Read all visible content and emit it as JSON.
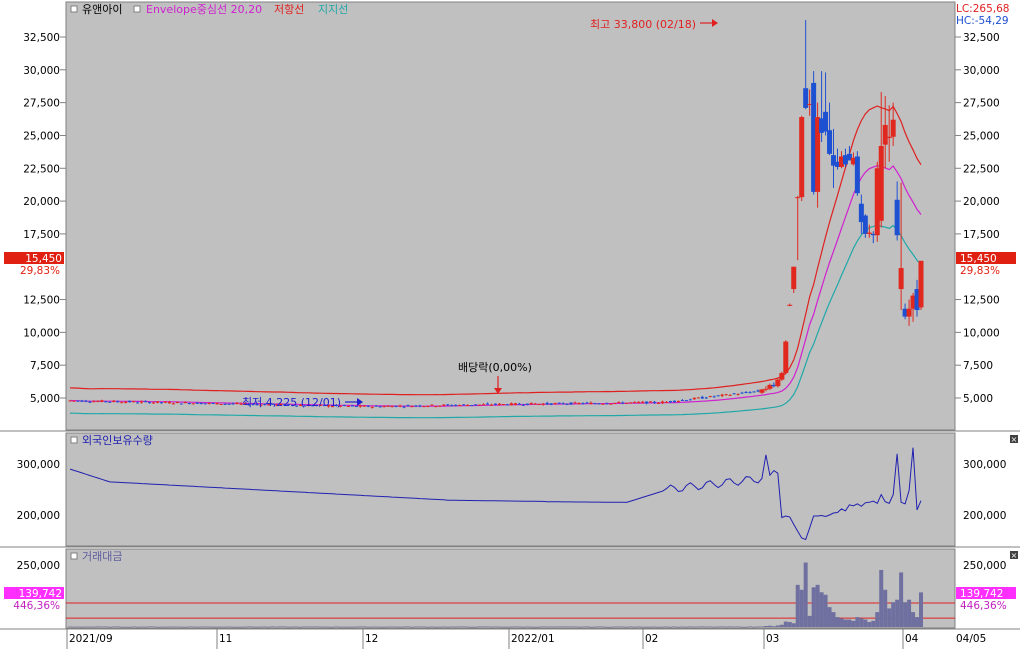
{
  "colors": {
    "panel_bg": "#c0c0c0",
    "axis_bg": "#ffffff",
    "up": "#e0281e",
    "down": "#1e50d2",
    "resistance": "#e02020",
    "center": "#d020d0",
    "support": "#20a8a8",
    "foreign": "#2020b0",
    "amount": "#7070a0",
    "price_tag": "#e02010",
    "amount_tag": "#ff30ff"
  },
  "legend": {
    "stock_name": "유앤아이",
    "envelope": "Envelope중심선 20,20",
    "resistance": "저항선",
    "support": "지지선"
  },
  "corner": {
    "lc": "LC:265,68",
    "hc": "HC:-54,29"
  },
  "price_tag": {
    "value": "15,450",
    "pct": "29,83%"
  },
  "amount_tag": {
    "value": "139,742",
    "pct": "446,36%"
  },
  "foreign_title": "외국인보유수량",
  "amount_title": "거래대금",
  "annotations": {
    "high": "최고 33,800 (02/18)",
    "low": "최저 4,225 (12/01)",
    "dividend": "배당락(0,00%)"
  },
  "price_axis_labels": [
    "32,500",
    "30,000",
    "27,500",
    "25,000",
    "22,500",
    "20,000",
    "17,500",
    "15,000",
    "12,500",
    "10,000",
    "7,500",
    "5,000"
  ],
  "foreign_axis_labels": [
    "300,000",
    "200,000"
  ],
  "amount_axis_labels": [
    "250,000"
  ],
  "x_axis_labels": [
    "2021/09",
    "11",
    "12",
    "2022/01",
    "02",
    "03",
    "04"
  ],
  "right_date_label": "04/05",
  "chart_data": {
    "type": "candlestick",
    "price": {
      "ylim": [
        2000,
        34500
      ],
      "candles_late": [
        {
          "o": 5400,
          "h": 5700,
          "l": 5300,
          "c": 5650
        },
        {
          "o": 5650,
          "h": 5900,
          "l": 5500,
          "c": 5700
        },
        {
          "o": 5700,
          "h": 6100,
          "l": 5600,
          "c": 6000
        },
        {
          "o": 6000,
          "h": 6200,
          "l": 5800,
          "c": 5900
        },
        {
          "o": 5900,
          "h": 6500,
          "l": 5800,
          "c": 6400
        },
        {
          "o": 6400,
          "h": 7000,
          "l": 6300,
          "c": 6900
        },
        {
          "o": 6900,
          "h": 9400,
          "l": 6800,
          "c": 9300
        },
        {
          "o": 12100,
          "h": 12200,
          "l": 12000,
          "c": 12100
        },
        {
          "o": 13300,
          "h": 15000,
          "l": 13000,
          "c": 15000
        },
        {
          "o": 20300,
          "h": 20400,
          "l": 15500,
          "c": 20300
        },
        {
          "o": 20300,
          "h": 26500,
          "l": 20000,
          "c": 26400
        },
        {
          "o": 28600,
          "h": 33800,
          "l": 27000,
          "c": 27100
        },
        {
          "o": 27400,
          "h": 28500,
          "l": 26500,
          "c": 27400
        },
        {
          "o": 29000,
          "h": 29900,
          "l": 20500,
          "c": 20700
        },
        {
          "o": 20700,
          "h": 27500,
          "l": 19500,
          "c": 26400
        },
        {
          "o": 26300,
          "h": 29900,
          "l": 24500,
          "c": 25200
        },
        {
          "o": 26800,
          "h": 29800,
          "l": 25000,
          "c": 25300
        },
        {
          "o": 25400,
          "h": 27500,
          "l": 23500,
          "c": 23600
        },
        {
          "o": 23500,
          "h": 25500,
          "l": 21000,
          "c": 22700
        },
        {
          "o": 23000,
          "h": 24000,
          "l": 22400,
          "c": 22600
        },
        {
          "o": 22600,
          "h": 23800,
          "l": 22500,
          "c": 23400
        },
        {
          "o": 23500,
          "h": 24000,
          "l": 22600,
          "c": 22800
        },
        {
          "o": 23600,
          "h": 24200,
          "l": 23100,
          "c": 23100
        },
        {
          "o": 22800,
          "h": 23700,
          "l": 22700,
          "c": 23300
        },
        {
          "o": 23400,
          "h": 23800,
          "l": 20400,
          "c": 20600
        },
        {
          "o": 19800,
          "h": 20500,
          "l": 17500,
          "c": 18400
        },
        {
          "o": 18900,
          "h": 19000,
          "l": 17200,
          "c": 17500
        },
        {
          "o": 17500,
          "h": 18200,
          "l": 17200,
          "c": 17600
        },
        {
          "o": 17500,
          "h": 17700,
          "l": 16800,
          "c": 17400
        },
        {
          "o": 17400,
          "h": 23000,
          "l": 16900,
          "c": 22500
        },
        {
          "o": 18500,
          "h": 28300,
          "l": 18000,
          "c": 24200
        },
        {
          "o": 24300,
          "h": 28000,
          "l": 22500,
          "c": 25800
        },
        {
          "o": 24800,
          "h": 27300,
          "l": 23000,
          "c": 24900
        },
        {
          "o": 24900,
          "h": 27500,
          "l": 24200,
          "c": 26200
        },
        {
          "o": 20100,
          "h": 21500,
          "l": 17000,
          "c": 17400
        },
        {
          "o": 13300,
          "h": 21400,
          "l": 11700,
          "c": 14900
        },
        {
          "o": 11800,
          "h": 12200,
          "l": 11000,
          "c": 11200
        },
        {
          "o": 11200,
          "h": 12500,
          "l": 10500,
          "c": 11800
        },
        {
          "o": 11800,
          "h": 13000,
          "l": 10800,
          "c": 12800
        },
        {
          "o": 13300,
          "h": 14000,
          "l": 11200,
          "c": 11700
        },
        {
          "o": 11900,
          "h": 15450,
          "l": 11700,
          "c": 15450
        }
      ]
    },
    "foreign_holdings": {
      "ylim": [
        150000,
        360000
      ]
    },
    "trading_amount": {
      "ylim": [
        0,
        270000
      ],
      "last": 139742
    }
  }
}
